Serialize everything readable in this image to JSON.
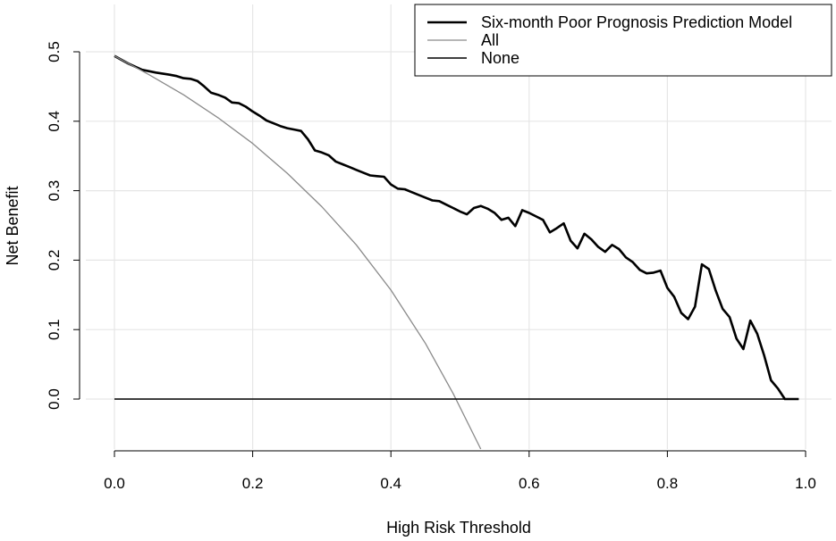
{
  "chart_data": {
    "type": "line",
    "title": "",
    "xlabel": "High Risk Threshold",
    "ylabel": "Net Benefit",
    "xlim": [
      0,
      1
    ],
    "ylim": [
      -0.075,
      0.56
    ],
    "grid": true,
    "x_ticks": [
      "0.0",
      "0.2",
      "0.4",
      "0.6",
      "0.8",
      "1.0"
    ],
    "y_ticks": [
      "0.0",
      "0.1",
      "0.2",
      "0.3",
      "0.4",
      "0.5"
    ],
    "legend_position": "top-right",
    "series": [
      {
        "name": "Six-month Poor Prognosis Prediction Model",
        "color": "#000000",
        "x": [
          0.0,
          0.02,
          0.04,
          0.06,
          0.08,
          0.09,
          0.1,
          0.11,
          0.12,
          0.13,
          0.14,
          0.15,
          0.16,
          0.17,
          0.18,
          0.19,
          0.2,
          0.21,
          0.22,
          0.23,
          0.24,
          0.25,
          0.26,
          0.27,
          0.28,
          0.29,
          0.3,
          0.31,
          0.32,
          0.33,
          0.34,
          0.35,
          0.36,
          0.37,
          0.38,
          0.39,
          0.4,
          0.41,
          0.42,
          0.43,
          0.44,
          0.45,
          0.46,
          0.47,
          0.48,
          0.49,
          0.5,
          0.51,
          0.52,
          0.53,
          0.54,
          0.55,
          0.56,
          0.57,
          0.58,
          0.59,
          0.6,
          0.61,
          0.62,
          0.63,
          0.64,
          0.65,
          0.66,
          0.67,
          0.68,
          0.69,
          0.7,
          0.71,
          0.72,
          0.73,
          0.74,
          0.75,
          0.76,
          0.77,
          0.78,
          0.79,
          0.8,
          0.81,
          0.82,
          0.83,
          0.84,
          0.85,
          0.86,
          0.87,
          0.88,
          0.89,
          0.9,
          0.91,
          0.92,
          0.93,
          0.94,
          0.95,
          0.96,
          0.97,
          0.98,
          0.99
        ],
        "y": [
          0.494,
          0.483,
          0.474,
          0.47,
          0.467,
          0.465,
          0.462,
          0.461,
          0.458,
          0.45,
          0.441,
          0.438,
          0.434,
          0.427,
          0.426,
          0.421,
          0.414,
          0.408,
          0.401,
          0.397,
          0.393,
          0.39,
          0.388,
          0.386,
          0.374,
          0.358,
          0.355,
          0.351,
          0.342,
          0.338,
          0.334,
          0.33,
          0.326,
          0.322,
          0.321,
          0.32,
          0.309,
          0.303,
          0.302,
          0.298,
          0.294,
          0.29,
          0.286,
          0.285,
          0.28,
          0.275,
          0.27,
          0.266,
          0.275,
          0.278,
          0.274,
          0.268,
          0.258,
          0.261,
          0.249,
          0.272,
          0.268,
          0.263,
          0.258,
          0.24,
          0.246,
          0.253,
          0.228,
          0.217,
          0.238,
          0.23,
          0.219,
          0.212,
          0.222,
          0.216,
          0.204,
          0.197,
          0.186,
          0.181,
          0.182,
          0.185,
          0.16,
          0.147,
          0.124,
          0.115,
          0.133,
          0.194,
          0.187,
          0.156,
          0.13,
          0.118,
          0.087,
          0.072,
          0.113,
          0.094,
          0.063,
          0.027,
          0.015,
          0.0,
          0.0,
          0.0
        ]
      },
      {
        "name": "All",
        "color": "#8a8a8a",
        "prevalence": 0.494,
        "x": [
          0.0,
          0.05,
          0.1,
          0.15,
          0.2,
          0.25,
          0.3,
          0.35,
          0.4,
          0.45,
          0.49,
          0.53
        ],
        "y": [
          0.494,
          0.467,
          0.438,
          0.405,
          0.368,
          0.325,
          0.277,
          0.222,
          0.157,
          0.08,
          0.008,
          -0.077
        ]
      },
      {
        "name": "None",
        "color": "#000000",
        "x": [
          0.0,
          0.99
        ],
        "y": [
          0.0,
          0.0
        ]
      }
    ]
  }
}
